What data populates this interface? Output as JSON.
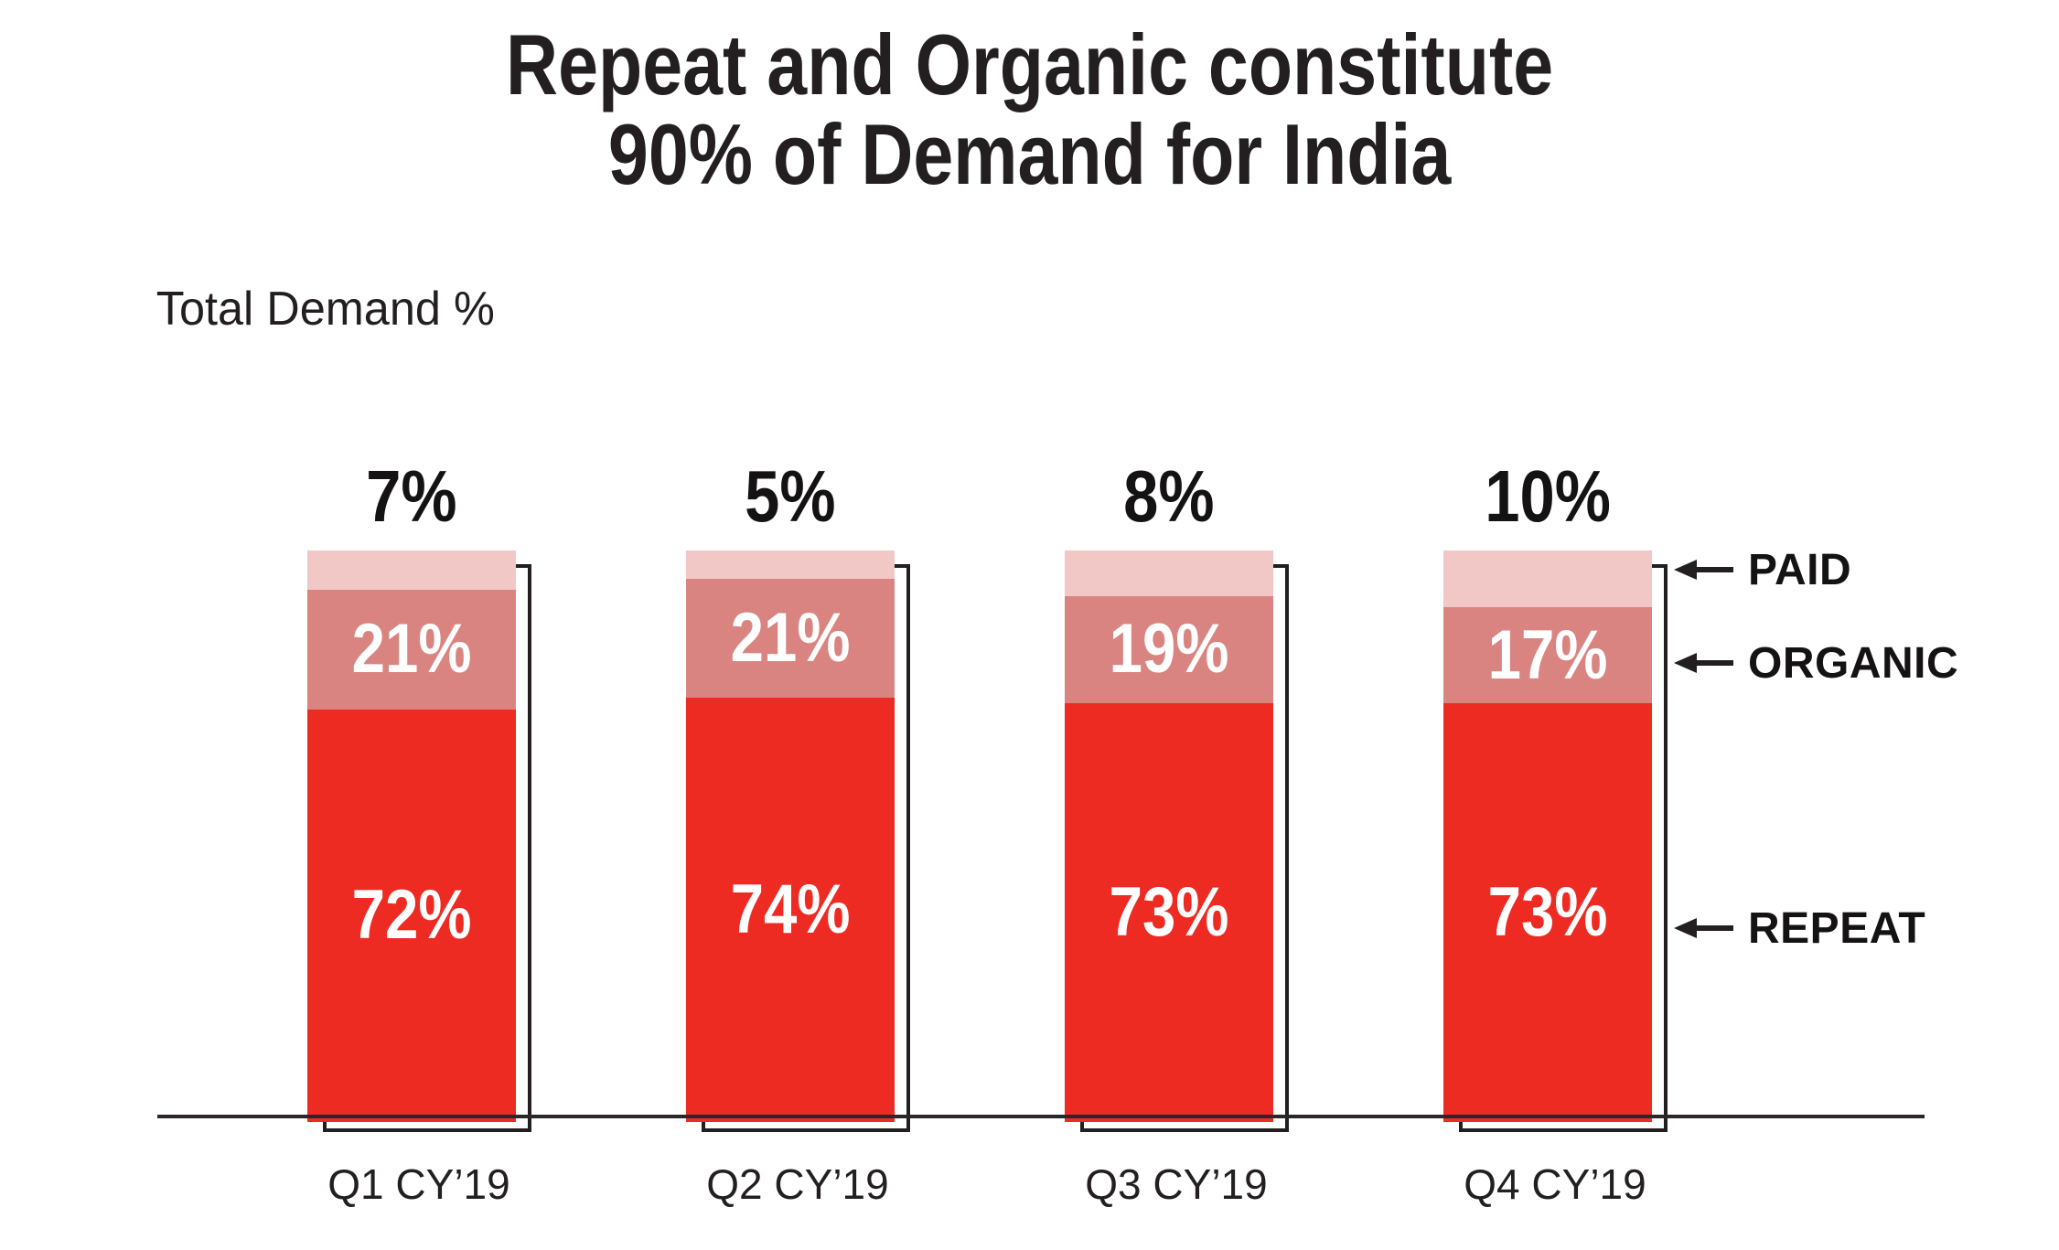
{
  "title": {
    "line1": "Repeat and Organic constitute",
    "line2": "90% of Demand for India"
  },
  "axis_note": "Total Demand %",
  "chart_data": {
    "type": "bar",
    "variant": "stacked-100-percent",
    "title": "Repeat and Organic constitute 90% of Demand for India",
    "ylabel": "Total Demand %",
    "unit": "%",
    "ylim": [
      0,
      100
    ],
    "grid": false,
    "legend_position": "right-arrow-annotations",
    "categories": [
      "Q1 CY’19",
      "Q2 CY’19",
      "Q3 CY’19",
      "Q4 CY’19"
    ],
    "series": [
      {
        "name": "PAID",
        "color": "#f1c8c6",
        "values": [
          7,
          5,
          8,
          10
        ],
        "value_label_position": "above-bar"
      },
      {
        "name": "ORGANIC",
        "color": "#d98480",
        "values": [
          21,
          21,
          19,
          17
        ],
        "value_label_position": "inside"
      },
      {
        "name": "REPEAT",
        "color": "#ee2b23",
        "values": [
          72,
          74,
          73,
          73
        ],
        "value_label_position": "inside"
      }
    ]
  },
  "annotations": [
    {
      "label": "PAID"
    },
    {
      "label": "ORGANIC"
    },
    {
      "label": "REPEAT"
    }
  ],
  "colors": {
    "ink": "#231f20",
    "value_text": "#ffffff",
    "paid": "#f1c8c6",
    "organic": "#d98480",
    "repeat": "#ee2b23"
  }
}
